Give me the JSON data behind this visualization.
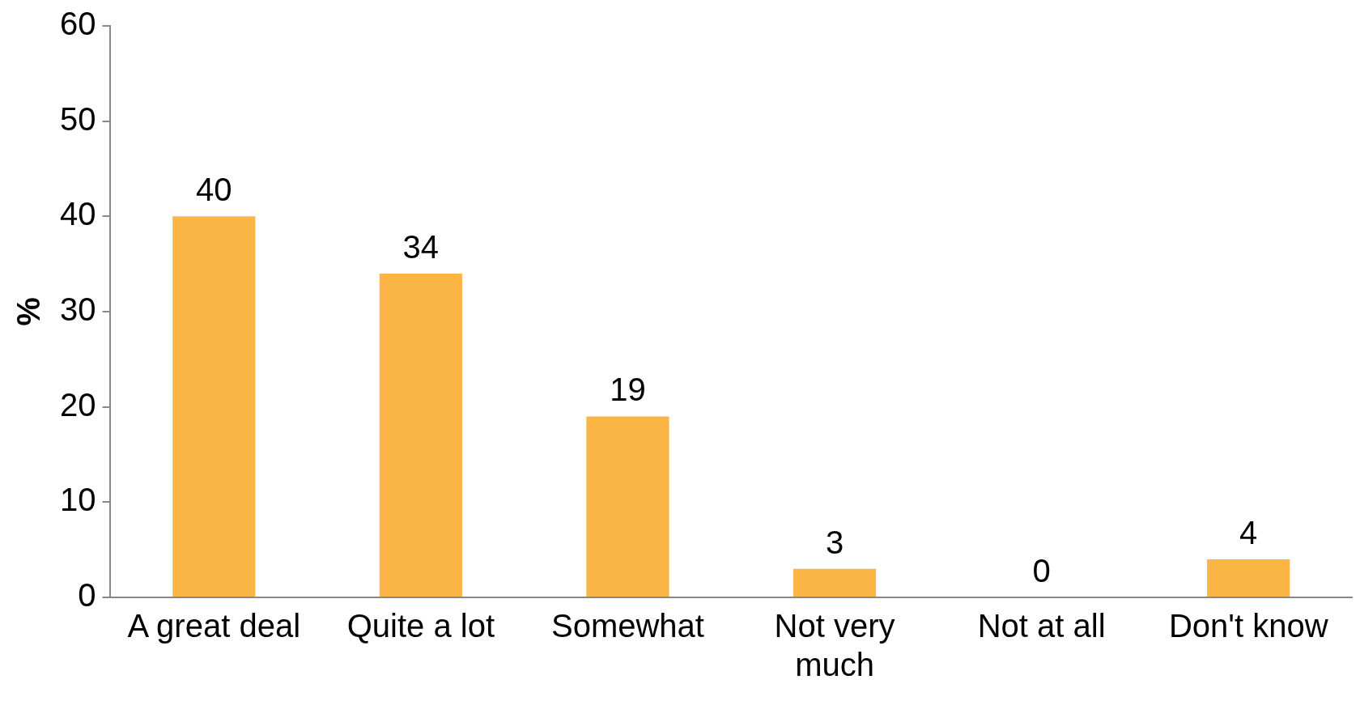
{
  "chart_data": {
    "type": "bar",
    "ylabel": "%",
    "categories": [
      "A great deal",
      "Quite a lot",
      "Somewhat",
      "Not very much",
      "Not at all",
      "Don't know"
    ],
    "values": [
      40,
      34,
      19,
      3,
      0,
      4
    ],
    "color": "#fbb545",
    "ylim": [
      0,
      60
    ],
    "yticks": [
      0,
      10,
      20,
      30,
      40,
      50,
      60
    ],
    "grid": false,
    "legend": false,
    "data_labels": true
  }
}
